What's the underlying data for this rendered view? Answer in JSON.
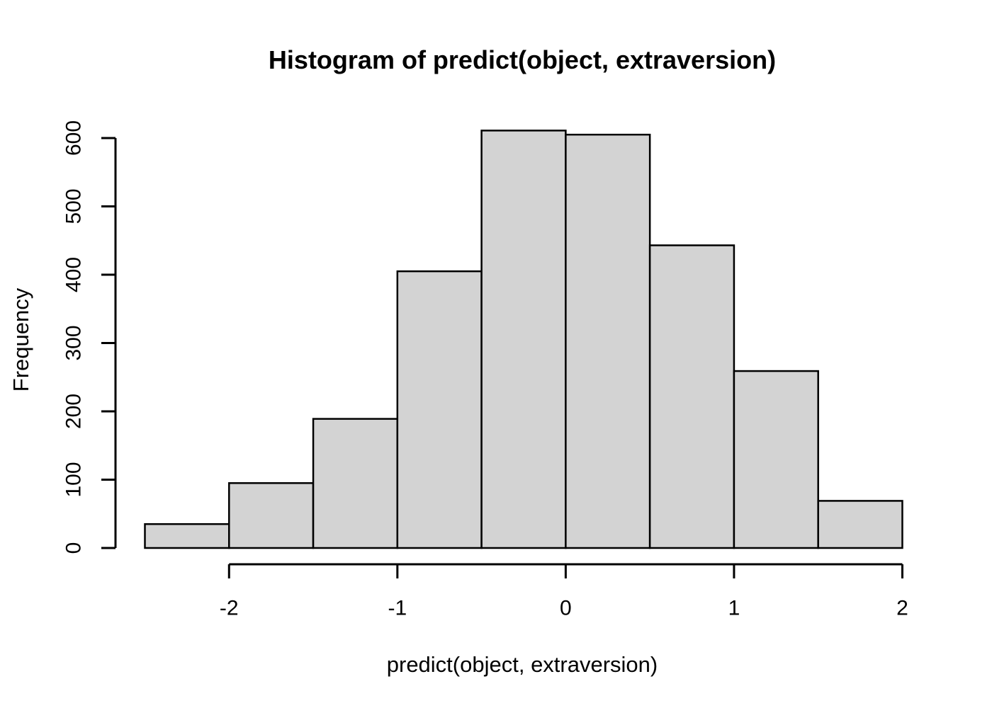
{
  "page": {
    "background": "#ffffff"
  },
  "chart_data": {
    "type": "bar",
    "subtype": "histogram",
    "title": "Histogram of predict(object, extraversion)",
    "xlabel": "predict(object, extraversion)",
    "ylabel": "Frequency",
    "bin_breaks": [
      -2.5,
      -2.0,
      -1.5,
      -1.0,
      -0.5,
      0.0,
      0.5,
      1.0,
      1.5,
      2.0
    ],
    "counts": [
      35,
      95,
      189,
      405,
      611,
      605,
      443,
      259,
      69
    ],
    "x_ticks": [
      -2,
      -1,
      0,
      1,
      2
    ],
    "x_tick_labels": [
      "-2",
      "-1",
      "0",
      "1",
      "2"
    ],
    "y_ticks": [
      0,
      100,
      200,
      300,
      400,
      500,
      600
    ],
    "y_tick_labels": [
      "0",
      "100",
      "200",
      "300",
      "400",
      "500",
      "600"
    ],
    "xlim": [
      -2.5,
      2.0
    ],
    "ylim": [
      0,
      600
    ],
    "grid": false,
    "legend": false,
    "colors": {
      "bar_fill": "#d3d3d3",
      "bar_border": "#000000",
      "axis": "#000000",
      "text": "#000000"
    }
  }
}
